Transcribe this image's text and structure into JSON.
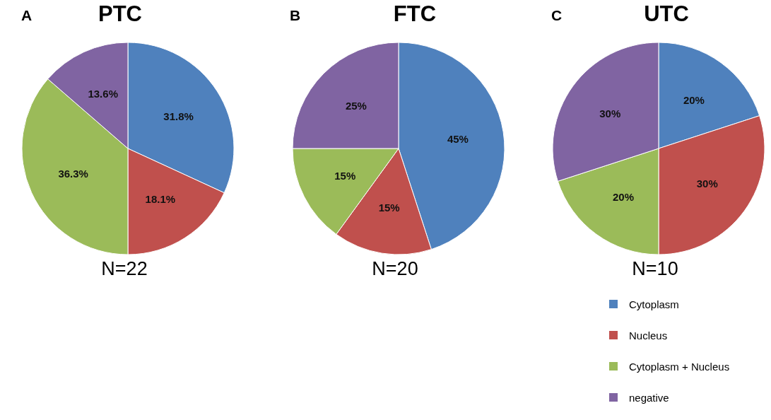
{
  "chart_data": [
    {
      "type": "pie",
      "title": "PTC",
      "categories": [
        null,
        null,
        null,
        null
      ],
      "values": [
        31.8,
        18.1,
        36.3,
        13.6
      ],
      "value_labels": [
        "31.8%",
        "18.1%",
        "36.3%",
        "13.6%"
      ],
      "colors": [
        "#4f81bd",
        "#c0504d",
        "#9bbb59",
        "#8064a2"
      ],
      "annotations": [
        "A",
        "N=22"
      ],
      "legend": false
    },
    {
      "type": "pie",
      "title": "FTC",
      "categories": [
        null,
        null,
        null,
        null
      ],
      "values": [
        45,
        15,
        15,
        25
      ],
      "value_labels": [
        "45%",
        "15%",
        "15%",
        "25%"
      ],
      "colors": [
        "#4f81bd",
        "#c0504d",
        "#9bbb59",
        "#8064a2"
      ],
      "annotations": [
        "B",
        "N=20"
      ],
      "legend": false
    },
    {
      "type": "pie",
      "title": "UTC",
      "categories": [
        "Cytoplasm",
        "Nucleus",
        "Cytoplasm + Nucleus",
        "negative"
      ],
      "values": [
        20,
        30,
        20,
        30
      ],
      "value_labels": [
        "20%",
        "30%",
        "20%",
        "30%"
      ],
      "colors": [
        "#4f81bd",
        "#c0504d",
        "#9bbb59",
        "#8064a2"
      ],
      "annotations": [
        "C",
        "N=10"
      ],
      "legend": "bottom"
    }
  ]
}
